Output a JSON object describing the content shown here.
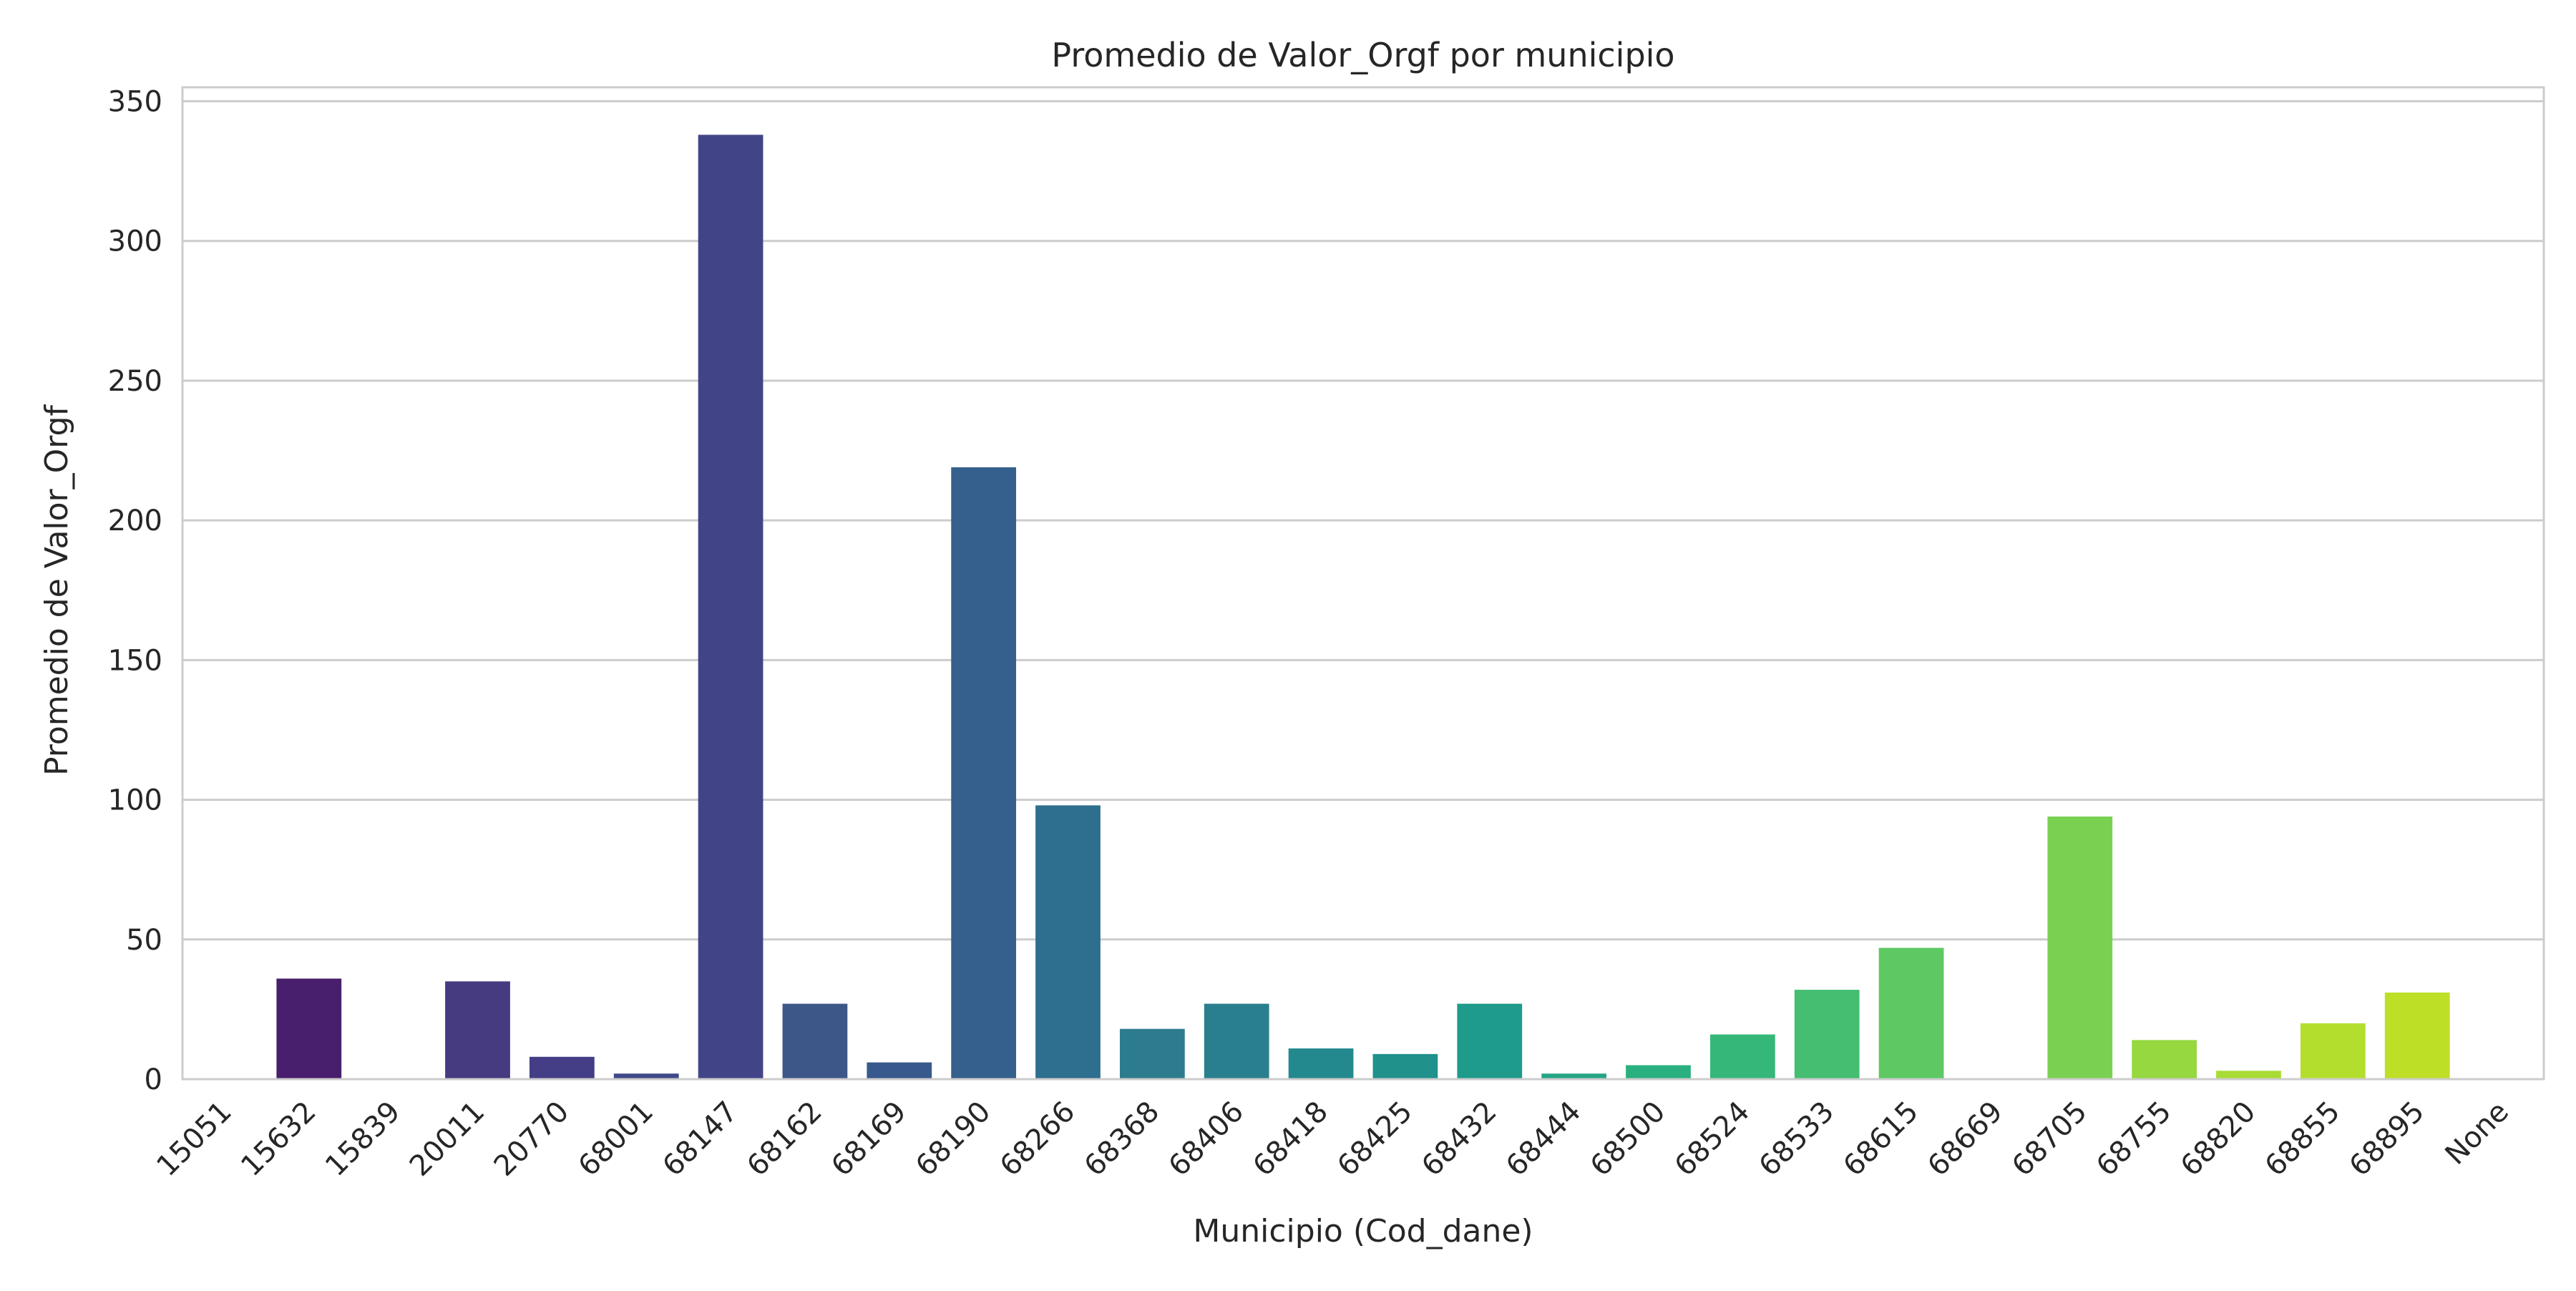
{
  "chart_data": {
    "type": "bar",
    "title": "Promedio de Valor_Orgf por municipio",
    "xlabel": "Municipio (Cod_dane)",
    "ylabel": "Promedio de Valor_Orgf",
    "ylim": [
      0,
      355
    ],
    "yticks": [
      0,
      50,
      100,
      150,
      200,
      250,
      300,
      350
    ],
    "grid": true,
    "categories": [
      "15051",
      "15632",
      "15839",
      "20011",
      "20770",
      "68001",
      "68147",
      "68162",
      "68169",
      "68190",
      "68266",
      "68368",
      "68406",
      "68418",
      "68425",
      "68432",
      "68444",
      "68500",
      "68524",
      "68533",
      "68615",
      "68669",
      "68705",
      "68755",
      "68820",
      "68855",
      "68895",
      "None"
    ],
    "values": [
      0,
      36,
      0,
      35,
      8,
      2,
      338,
      27,
      6,
      219,
      98,
      18,
      27,
      11,
      9,
      27,
      2,
      5,
      16,
      32,
      47,
      0,
      94,
      14,
      3,
      20,
      31,
      0
    ],
    "colors": [
      "#440154",
      "#481f6c",
      "#482f77",
      "#463a81",
      "#433e85",
      "#3e4a89",
      "#414487",
      "#3e5789",
      "#38598c",
      "#355f8d",
      "#2e6e8e",
      "#2c7c8e",
      "#2a7f8e",
      "#23898e",
      "#21918c",
      "#1e9b8a",
      "#25a584",
      "#2ab07f",
      "#35b779",
      "#45be71",
      "#5ec962",
      "#79d151",
      "#7ad151",
      "#95d840",
      "#a8db34",
      "#b3de2e",
      "#bddf26",
      "#d6e22b"
    ]
  }
}
